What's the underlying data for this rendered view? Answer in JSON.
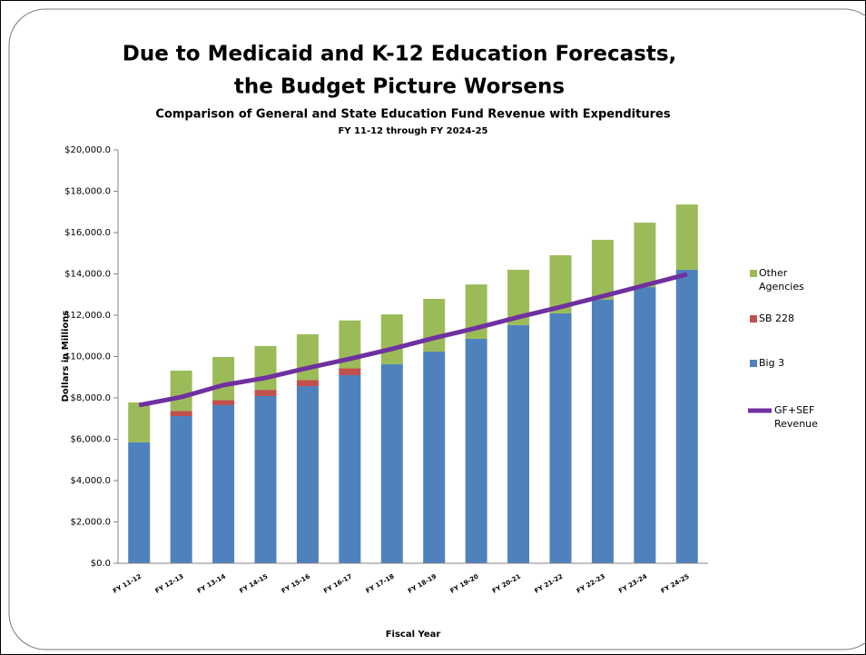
{
  "chart_data": {
    "type": "stacked_bar_line",
    "title": [
      "Due to Medicaid and K-12 Education Forecasts,",
      "the Budget Picture Worsens"
    ],
    "subtitle": "Comparison of General and State Education Fund Revenue with Expenditures",
    "subtitle2": "FY 11-12 through FY 2024-25",
    "x_label": "Fiscal Year",
    "y_label": "Dollars in Millions",
    "categories": [
      "FY 11-12",
      "FY 12-13",
      "FY 13-14",
      "FY 14-15",
      "FY 15-16",
      "FY 16-17",
      "FY 17-18",
      "FY 18-19",
      "FY 19-20",
      "FY 20-21",
      "FY 21-22",
      "FY 22-23",
      "FY 23-24",
      "FY 24-25"
    ],
    "ylim": [
      0,
      20000
    ],
    "yticks": [
      {
        "value": 0,
        "label": "$0.0"
      },
      {
        "value": 2000,
        "label": "$2,000.0"
      },
      {
        "value": 4000,
        "label": "$4,000.0"
      },
      {
        "value": 6000,
        "label": "$6,000.0"
      },
      {
        "value": 8000,
        "label": "$8,000.0"
      },
      {
        "value": 10000,
        "label": "$10,000.0"
      },
      {
        "value": 12000,
        "label": "$12,000.0"
      },
      {
        "value": 14000,
        "label": "$14,000.0"
      },
      {
        "value": 16000,
        "label": "$16,000.0"
      },
      {
        "value": 18000,
        "label": "$18,000.0"
      },
      {
        "value": 20000,
        "label": "$20,000.0"
      }
    ],
    "grid": false,
    "series": [
      {
        "name": "Big 3",
        "kind": "bar",
        "color": "#4f81bd",
        "values": [
          5850,
          7120,
          7650,
          8090,
          8570,
          9100,
          9630,
          10240,
          10860,
          11520,
          12090,
          12750,
          13360,
          14200
        ]
      },
      {
        "name": "SB 228",
        "kind": "bar",
        "color": "#c0504d",
        "values": [
          0,
          250,
          250,
          300,
          300,
          330,
          0,
          0,
          0,
          0,
          0,
          0,
          0,
          0
        ]
      },
      {
        "name": "Other Agencies",
        "kind": "bar",
        "color": "#9bbb59",
        "values": [
          1930,
          1950,
          2080,
          2120,
          2210,
          2320,
          2410,
          2550,
          2630,
          2680,
          2810,
          2900,
          3120,
          3160
        ]
      },
      {
        "name": "GF+SEF Revenue",
        "kind": "line",
        "color": "#7030a0",
        "values": [
          7650,
          8040,
          8620,
          8970,
          9450,
          9890,
          10370,
          10900,
          11380,
          11910,
          12400,
          12920,
          13450,
          13980
        ]
      }
    ]
  }
}
